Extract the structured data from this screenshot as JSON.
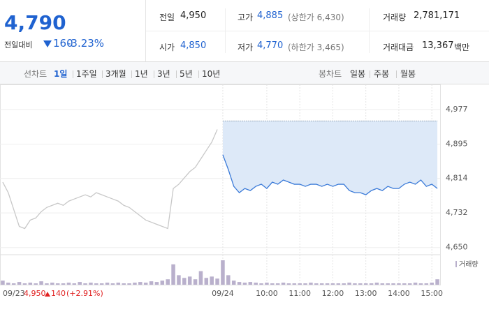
{
  "header": {
    "price": "4,790",
    "change_label": "전일대비",
    "change": "160",
    "change_pct": "-3.23%"
  },
  "stats": [
    {
      "label": "전일",
      "value": "4,950"
    },
    {
      "label": "고가",
      "value": "4,885",
      "note": "(상한가 6,430)"
    },
    {
      "label": "거래량",
      "value": "2,781,171"
    },
    {
      "label": "시가",
      "value": "4,850"
    },
    {
      "label": "저가",
      "value": "4,770",
      "note": "(하한가 3,465)"
    },
    {
      "label": "거래대금",
      "value": "13,367",
      "unit": "백만"
    }
  ],
  "tabs": {
    "line_label": "선차트",
    "line": [
      "1일",
      "1주일",
      "3개월",
      "1년",
      "3년",
      "5년",
      "10년"
    ],
    "line_active": 0,
    "candle_label": "봉차트",
    "candle": [
      "일봉",
      "주봉",
      "월봉"
    ]
  },
  "chart_data": {
    "type": "line",
    "categories": [
      "09/23",
      null,
      null,
      null,
      null,
      null,
      null,
      null,
      null,
      null,
      null,
      null,
      null,
      null,
      null,
      null,
      null,
      null,
      null,
      null,
      null,
      null,
      null,
      null,
      null,
      null,
      null,
      null,
      null,
      null,
      null,
      null,
      null,
      null,
      null,
      null,
      null,
      null,
      null,
      null,
      "09/24",
      null,
      null,
      null,
      null,
      null,
      null,
      null,
      "10:00",
      null,
      null,
      null,
      null,
      null,
      "11:00",
      null,
      null,
      null,
      null,
      null,
      "12:00",
      null,
      null,
      null,
      null,
      null,
      "13:00",
      null,
      null,
      null,
      null,
      null,
      "14:00",
      null,
      null,
      null,
      null,
      null,
      "15:00",
      null
    ],
    "series": [
      {
        "color": "#c8c8c8",
        "values": [
          4805,
          4780,
          4740,
          4700,
          4695,
          4715,
          4720,
          4735,
          4745,
          4750,
          4755,
          4750,
          4760,
          4765,
          4770,
          4775,
          4770,
          4780,
          4775,
          4770,
          4765,
          4760,
          4750,
          4745,
          4735,
          4725,
          4715,
          4710,
          4705,
          4700,
          4695,
          4790,
          4800,
          4815,
          4830,
          4840,
          4860,
          4880,
          4900,
          4930,
          null,
          null,
          null,
          null,
          null,
          null,
          null,
          null,
          null,
          null,
          null,
          null,
          null,
          null,
          null,
          null,
          null,
          null,
          null,
          null,
          null,
          null,
          null,
          null,
          null,
          null,
          null,
          null,
          null,
          null,
          null,
          null,
          null,
          null,
          null,
          null,
          null,
          null,
          null,
          null
        ]
      },
      {
        "color": "#3a7ad8",
        "values": [
          null,
          null,
          null,
          null,
          null,
          null,
          null,
          null,
          null,
          null,
          null,
          null,
          null,
          null,
          null,
          null,
          null,
          null,
          null,
          null,
          null,
          null,
          null,
          null,
          null,
          null,
          null,
          null,
          null,
          null,
          null,
          null,
          null,
          null,
          null,
          null,
          null,
          null,
          null,
          null,
          4870,
          4835,
          4795,
          4780,
          4790,
          4785,
          4795,
          4800,
          4790,
          4805,
          4800,
          4810,
          4805,
          4800,
          4800,
          4795,
          4800,
          4800,
          4795,
          4800,
          4795,
          4800,
          4800,
          4785,
          4780,
          4780,
          4775,
          4785,
          4790,
          4785,
          4795,
          4790,
          4790,
          4800,
          4805,
          4800,
          4810,
          4795,
          4800,
          4790
        ]
      }
    ],
    "volume": {
      "name": "거래량",
      "color": "#b9b0cc",
      "values": [
        6,
        3,
        2,
        4,
        2,
        3,
        2,
        5,
        2,
        3,
        2,
        2,
        3,
        2,
        4,
        2,
        3,
        2,
        2,
        3,
        2,
        3,
        2,
        2,
        3,
        4,
        3,
        5,
        4,
        6,
        8,
        30,
        14,
        10,
        12,
        8,
        20,
        10,
        12,
        9,
        36,
        14,
        6,
        4,
        3,
        4,
        3,
        2,
        3,
        2,
        2,
        3,
        2,
        2,
        2,
        2,
        3,
        2,
        2,
        2,
        2,
        2,
        2,
        3,
        2,
        2,
        2,
        2,
        3,
        2,
        2,
        2,
        2,
        2,
        2,
        3,
        2,
        2,
        3,
        8
      ]
    },
    "prev_close": {
      "value": 4950,
      "label": "4,950"
    },
    "prev_change": "140",
    "prev_change_pct": "(+2.91%)",
    "ylim": [
      4633,
      5030
    ],
    "yticks": [
      {
        "value": 4650,
        "label": "4,650"
      },
      {
        "value": 4732,
        "label": "4,732"
      },
      {
        "value": 4814,
        "label": "4,814"
      },
      {
        "value": 4895,
        "label": "4,895"
      },
      {
        "value": 4977,
        "label": "4,977"
      }
    ],
    "grid": true
  }
}
